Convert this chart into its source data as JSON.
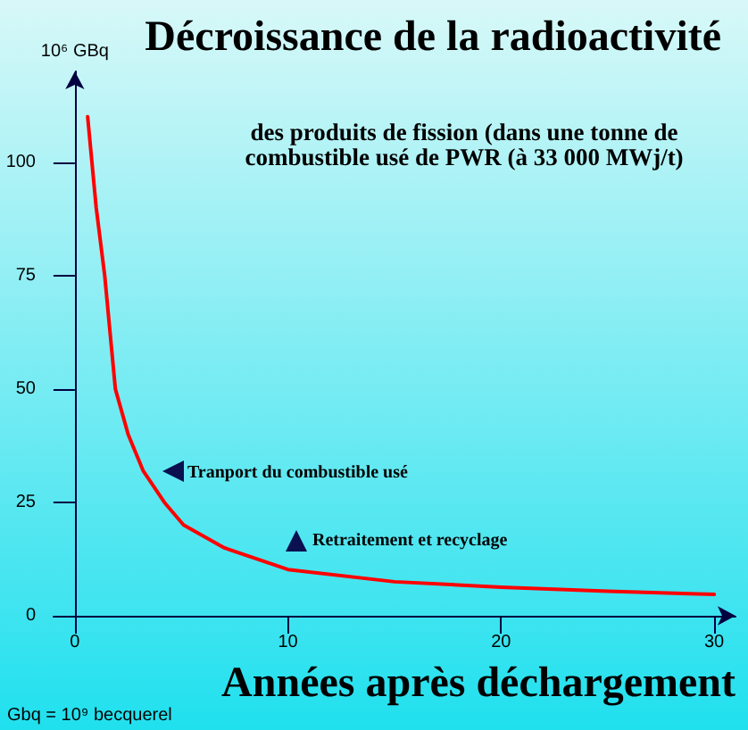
{
  "chart_data": {
    "type": "line",
    "title": "Décroissance de la radioactivité",
    "subtitle": "des produits de fission (dans une tonne de\ncombustible usé de PWR (à 33 000 MWj/t)",
    "xlabel": "Années après déchargement",
    "ylabel": "10⁶ GBq",
    "x": [
      0.6,
      1.0,
      1.4,
      1.9,
      2.5,
      3.2,
      4.2,
      5.1,
      7,
      10,
      15,
      20,
      25,
      30
    ],
    "series": [
      {
        "color": "#ff0000",
        "values": [
          110,
          90,
          75,
          50,
          40,
          32,
          25,
          20,
          15,
          10.2,
          7.5,
          6.3,
          5.4,
          4.7
        ]
      }
    ],
    "xlim": [
      -1,
      31
    ],
    "xticks": [
      0,
      10,
      20,
      30
    ],
    "ylim": [
      0,
      120
    ],
    "yticks": [
      0,
      25,
      50,
      75,
      100
    ],
    "grid": false,
    "marker": "none",
    "line_style": "solid",
    "annotations": [
      "Tranport du combustible usé",
      "Retraitement et recyclage",
      "Gbq = 10⁹ becquerel"
    ]
  }
}
